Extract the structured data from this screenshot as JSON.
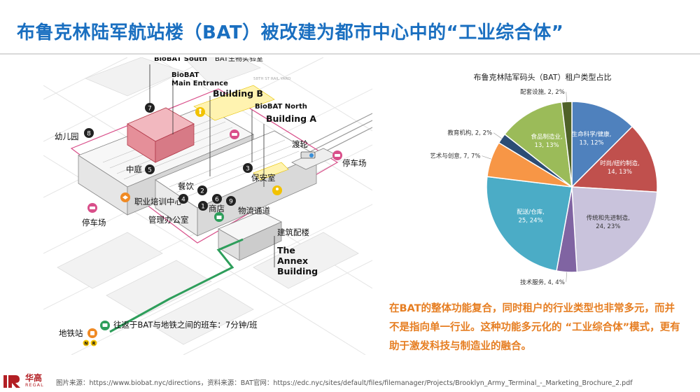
{
  "title": "布鲁克林陆军航站楼（BAT）被改建为都市中心中的“工业综合体”",
  "map": {
    "street_label": "58TH ST RAIL YARD",
    "labels": {
      "biobat_south": "BioBAT South",
      "bat_lab": "BAT生物实验室",
      "biobat_main": "BioBAT",
      "biobat_main_2": "Main Entrance",
      "building_b": "Building B",
      "biobat_north": "BioBAT North",
      "building_a": "Building A",
      "kindergarten": "幼儿园",
      "ferry": "渡轮",
      "parking_right": "停车场",
      "courtyard": "中庭",
      "security": "保安室",
      "dining": "餐饮",
      "training": "职业培训中心",
      "shop": "商店",
      "logistics": "物流通道",
      "parking_left": "停车场",
      "admin": "管理办公室",
      "annex_cn": "建筑配楼",
      "annex_1": "The",
      "annex_2": "Annex",
      "annex_3": "Building",
      "shuttle": "往返于BAT与地铁之间的班车：7分钟/班",
      "subway": "地铁站",
      "line_n": "N",
      "line_r": "R"
    },
    "markers": [
      "7",
      "8",
      "5",
      "2",
      "4",
      "1",
      "6",
      "3",
      "9"
    ]
  },
  "chart_data": {
    "type": "pie",
    "title": "布鲁克林陆军码头（BAT）租户类型占比",
    "slices": [
      {
        "label": "生命科学/健康",
        "value": 13,
        "percent": "12%",
        "text": "生命科学/健康, 13, 12%",
        "color": "#4f81bd"
      },
      {
        "label": "时尚/纽约制造",
        "value": 14,
        "percent": "13%",
        "text": "时尚/纽约制造, 14, 13%",
        "color": "#c0504d"
      },
      {
        "label": "传统和先进制造",
        "value": 24,
        "percent": "23%",
        "text": "传统和先进制造, 24, 23%",
        "color": "#c9c3dc"
      },
      {
        "label": "技术服务",
        "value": 4,
        "percent": "4%",
        "text": "技术服务, 4, 4%",
        "color": "#8064a2"
      },
      {
        "label": "配送/仓库",
        "value": 25,
        "percent": "24%",
        "text": "配送/仓库, 25, 24%",
        "color": "#4bacc6"
      },
      {
        "label": "艺术与创意",
        "value": 7,
        "percent": "7%",
        "text": "艺术与创意, 7, 7%",
        "color": "#f79646"
      },
      {
        "label": "教育机构",
        "value": 2,
        "percent": "2%",
        "text": "教育机构, 2, 2%",
        "color": "#2c4d75"
      },
      {
        "label": "食品制造业",
        "value": 13,
        "percent": "13%",
        "text": "食品制造业, 13, 13%",
        "color": "#9bbb59"
      },
      {
        "label": "配套设施",
        "value": 2,
        "percent": "2%",
        "text": "配套设施, 2, 2%",
        "color": "#4f6228"
      }
    ]
  },
  "note": "在BAT的整体功能复合，同时租户的行业类型也非常多元，而并不是指向单一行业。这种功能多元化的 “工业综合体”模式，更有助于激发科技与制造业的融合。",
  "footer": {
    "logo_cn": "华高",
    "logo_en": "REGAL",
    "source": "图片来源：https://www.biobat.nyc/directions，资料来源：BAT官网：https://edc.nyc/sites/default/files/filemanager/Projects/Brooklyn_Army_Terminal_-_Marketing_Brochure_2.pdf"
  },
  "colors": {
    "title": "#1a6fc0",
    "note": "#e67e22",
    "highlight_pink": "#e8a3ad",
    "route_green": "#2e9e5b",
    "outline_pink": "#d94f8a",
    "marker_dark": "#222222",
    "logo_red": "#b31f24"
  }
}
